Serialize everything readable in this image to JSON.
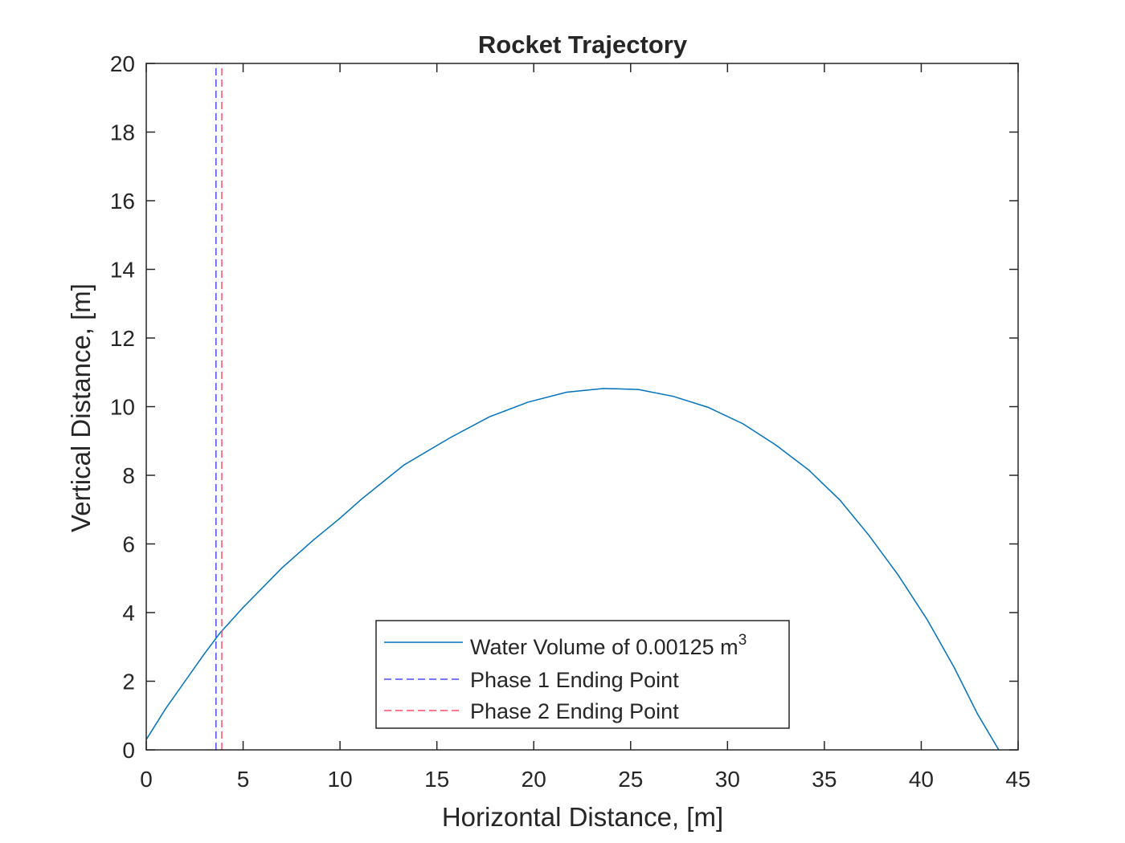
{
  "chart_data": {
    "type": "line",
    "title": "Rocket Trajectory",
    "xlabel": "Horizontal Distance, [m]",
    "ylabel": "Vertical Distance, [m]",
    "xlim": [
      0,
      45
    ],
    "ylim": [
      0,
      20
    ],
    "xticks": [
      0,
      5,
      10,
      15,
      20,
      25,
      30,
      35,
      40,
      45
    ],
    "yticks": [
      0,
      2,
      4,
      6,
      8,
      10,
      12,
      14,
      16,
      18,
      20
    ],
    "grid": false,
    "legend_position": "bottom-center",
    "series": [
      {
        "name": "Water Volume of 0.00125 m",
        "name_superscript": "3",
        "style": "solid",
        "color": "#0072BD",
        "x": [
          0,
          1.0,
          2.0,
          3.0,
          3.8,
          5.0,
          7.0,
          8.6,
          10.0,
          11.1,
          13.3,
          15.7,
          17.7,
          19.7,
          21.7,
          23.6,
          25.4,
          27.2,
          29.0,
          30.8,
          32.5,
          34.2,
          35.8,
          37.3,
          38.8,
          40.3,
          41.7,
          42.9,
          44.0
        ],
        "y": [
          0.3,
          1.2,
          2.0,
          2.8,
          3.4,
          4.15,
          5.3,
          6.1,
          6.75,
          7.3,
          8.3,
          9.1,
          9.7,
          10.13,
          10.42,
          10.53,
          10.5,
          10.3,
          9.98,
          9.5,
          8.88,
          8.15,
          7.28,
          6.25,
          5.1,
          3.8,
          2.4,
          1.05,
          0.0
        ]
      },
      {
        "name": "Phase 1 Ending Point",
        "style": "dashed",
        "color": "#4D4DFF",
        "x": [
          3.6,
          3.6
        ],
        "y": [
          0,
          20
        ]
      },
      {
        "name": "Phase 2 Ending Point",
        "style": "dashed",
        "color": "#FF4D6A",
        "x": [
          3.9,
          3.9
        ],
        "y": [
          0,
          20
        ]
      }
    ]
  }
}
